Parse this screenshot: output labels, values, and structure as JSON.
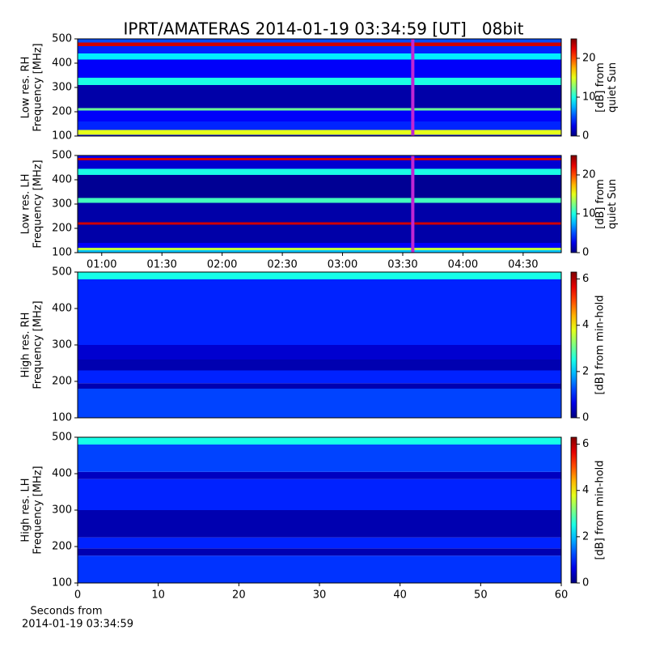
{
  "chart_data": [
    {
      "type": "heatmap",
      "title": "IPRT/AMATERAS 2014-01-19 03:34:59 [UT]   08bit",
      "ylabel": [
        "Low res. RH",
        "Frequency [MHz]"
      ],
      "xlim": [
        48,
        289
      ],
      "ylim": [
        100,
        500
      ],
      "yticks": [
        100,
        200,
        300,
        400,
        500
      ],
      "marker_x": 215,
      "marker_color": "#c026d3",
      "y_bins": [
        100,
        105,
        125,
        160,
        205,
        215,
        310,
        340,
        415,
        440,
        470,
        485,
        500
      ],
      "values": [
        3,
        15,
        4,
        3,
        12,
        1,
        10,
        3,
        9,
        4,
        23,
        5
      ],
      "clim": [
        0,
        25
      ],
      "cticks": [
        0,
        10,
        20
      ],
      "clabel": [
        "[dB] from",
        "quiet Sun"
      ]
    },
    {
      "type": "heatmap",
      "ylabel": [
        "Low res. LH",
        "Frequency [MHz]"
      ],
      "xlim": [
        48,
        289
      ],
      "ylim": [
        100,
        500
      ],
      "yticks": [
        100,
        200,
        300,
        400,
        500
      ],
      "xticks": [
        {
          "value": 60,
          "label": "01:00"
        },
        {
          "value": 90,
          "label": "01:30"
        },
        {
          "value": 120,
          "label": "02:00"
        },
        {
          "value": 150,
          "label": "02:30"
        },
        {
          "value": 180,
          "label": "03:00"
        },
        {
          "value": 210,
          "label": "03:30"
        },
        {
          "value": 240,
          "label": "04:00"
        },
        {
          "value": 270,
          "label": "04:30"
        }
      ],
      "marker_x": 215,
      "marker_color": "#c026d3",
      "y_bins": [
        100,
        110,
        120,
        140,
        215,
        225,
        305,
        325,
        420,
        445,
        480,
        490,
        500
      ],
      "values": [
        8,
        14,
        3,
        1,
        23,
        1,
        11,
        0.5,
        10,
        2,
        23,
        3
      ],
      "clim": [
        0,
        25
      ],
      "cticks": [
        0,
        10,
        20
      ],
      "clabel": [
        "[dB] from",
        "quiet Sun"
      ]
    },
    {
      "type": "heatmap",
      "ylabel": [
        "High res. RH",
        "Frequency [MHz]"
      ],
      "xlim": [
        0,
        60
      ],
      "ylim": [
        100,
        500
      ],
      "yticks": [
        100,
        200,
        300,
        400,
        500
      ],
      "y_bins": [
        100,
        180,
        195,
        230,
        260,
        300,
        480,
        500
      ],
      "values": [
        1.2,
        0.3,
        1,
        0.3,
        0.5,
        1,
        2.5
      ],
      "clim": [
        0,
        6.3
      ],
      "cticks": [
        0,
        2,
        4,
        6
      ],
      "clabel": [
        "[dB] from min-hold"
      ]
    },
    {
      "type": "heatmap",
      "ylabel": [
        "High res. LH",
        "Frequency [MHz]"
      ],
      "xlim": [
        0,
        60
      ],
      "ylim": [
        100,
        500
      ],
      "yticks": [
        100,
        200,
        300,
        400,
        500
      ],
      "xticks": [
        0,
        10,
        20,
        30,
        40,
        50,
        60
      ],
      "xlabel": [
        "Seconds from",
        "2014-01-19 03:34:59"
      ],
      "y_bins": [
        100,
        175,
        195,
        225,
        300,
        385,
        405,
        480,
        500
      ],
      "values": [
        1.1,
        0.3,
        1,
        0.3,
        1,
        0.4,
        1.2,
        2.5
      ],
      "clim": [
        0,
        6.3
      ],
      "cticks": [
        0,
        2,
        4,
        6
      ],
      "clabel": [
        "[dB] from min-hold"
      ]
    }
  ]
}
